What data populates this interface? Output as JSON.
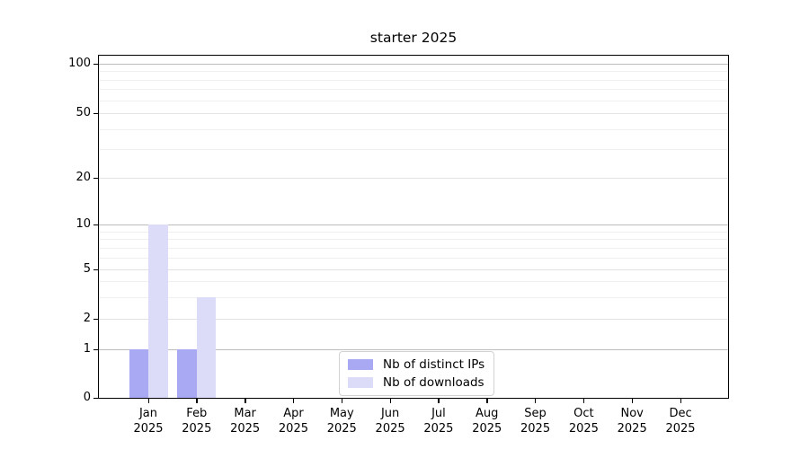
{
  "chart_data": {
    "type": "bar",
    "title": "starter 2025",
    "categories": [
      "Jan 2025",
      "Feb 2025",
      "Mar 2025",
      "Apr 2025",
      "May 2025",
      "Jun 2025",
      "Jul 2025",
      "Aug 2025",
      "Sep 2025",
      "Oct 2025",
      "Nov 2025",
      "Dec 2025"
    ],
    "series": [
      {
        "name": "Nb of distinct IPs",
        "color": "#a9a9f3",
        "values": [
          1,
          1,
          0,
          0,
          0,
          0,
          0,
          0,
          0,
          0,
          0,
          0
        ]
      },
      {
        "name": "Nb of downloads",
        "color": "#dcdcf8",
        "values": [
          10,
          3,
          0,
          0,
          0,
          0,
          0,
          0,
          0,
          0,
          0,
          0
        ]
      }
    ],
    "xlabel": "",
    "ylabel": "",
    "yscale": "log-like (linear 0-1, log above)",
    "ylim": [
      0,
      100
    ],
    "yticks": [
      0,
      1,
      2,
      5,
      10,
      20,
      50,
      100
    ],
    "ytick_labels": [
      "0",
      "1",
      "2",
      "5",
      "10",
      "20",
      "50",
      "100"
    ],
    "decade_ticks": [
      1,
      10,
      100
    ],
    "minor_ticks": [
      3,
      4,
      6,
      7,
      8,
      9,
      30,
      40,
      60,
      70,
      80,
      90
    ],
    "grid": "horizontal",
    "legend_position": "lower center",
    "colors": {
      "axis": "#000000",
      "grid_decade": "#bdbdbd",
      "grid_labeled": "#e2e2e2",
      "grid_minor": "#efefef",
      "background": "#ffffff"
    }
  }
}
